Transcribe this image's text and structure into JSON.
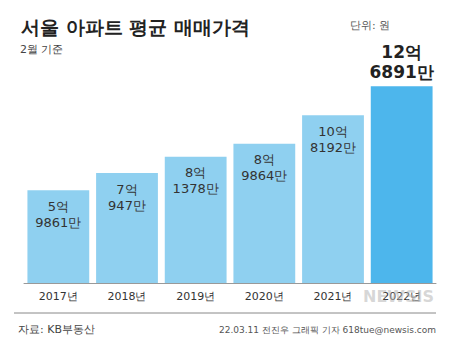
{
  "chart_data": {
    "type": "bar",
    "title": "서울 아파트 평균 매매가격",
    "annotations": [
      "단위: 원",
      "2월 기준",
      "자료: KB부동산",
      "22.03.11 전진우 그래픽 기자 618tue@newsis.com",
      "NEWSIS"
    ],
    "categories": [
      "2017년",
      "2018년",
      "2019년",
      "2020년",
      "2021년",
      "2022년"
    ],
    "values": [
      598610000,
      709470000,
      813780000,
      898640000,
      1081920000,
      1268910000
    ],
    "value_labels": [
      "5억\n9861만",
      "7억\n947만",
      "8억\n1378만",
      "8억\n9864만",
      "10억\n8192만",
      "12억\n6891만"
    ],
    "colors": [
      "#8fd0f0",
      "#8fd0f0",
      "#8fd0f0",
      "#8fd0f0",
      "#8fd0f0",
      "#4db6ec"
    ],
    "ylim": [
      0,
      1400000000
    ],
    "yticks": [
      0,
      1400000000
    ],
    "grid": false,
    "data_labels": true,
    "tick_labels": "x"
  }
}
